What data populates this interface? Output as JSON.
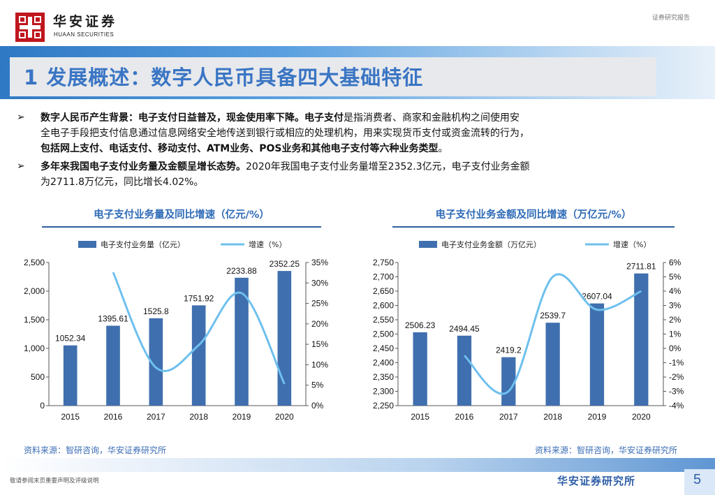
{
  "header": {
    "logo_cn": "华安证券",
    "logo_en": "HUAAN SECURITIES",
    "report_type": "证券研究报告"
  },
  "title": "1 发展概述：数字人民币具备四大基础特征",
  "bullets": [
    {
      "b1": "数字人民币产生背景：电子支付日益普及，现金使用率下降。",
      "b2": "电子支付",
      "n1": "是指消费者、商家和金融机构之间使用安",
      "n2": "全电子手段把支付信息通过信息网络安全地传送到银行或相应的处理机构，用来实现货币支付或资金流转的行为，",
      "b3": "包括网上支付、电话支付、移动支付、ATM业务、POS业务和其他电子支付等六种业务类型",
      "n3": "。"
    },
    {
      "b1": "多年来我国电子支付业务量及金额呈增长态势。",
      "n1": "2020年我国电子支付业务量增至2352.3亿元，电子支付业务金额",
      "n2": "为2711.8万亿元，同比增长4.02%。"
    }
  ],
  "charts": {
    "left_title": "电子支付业务量及同比增速（亿元/%）",
    "right_title": "电子支付业务金额及同比增速（万亿元/%）",
    "source_left": "资料来源：智研咨询，华安证券研究所",
    "source_right": "资料来源：智研咨询，华安证券研究所"
  },
  "chart_data": [
    {
      "type": "bar",
      "title": "电子支付业务量及同比增速（亿元/%）",
      "categories": [
        "2015",
        "2016",
        "2017",
        "2018",
        "2019",
        "2020"
      ],
      "series": [
        {
          "name": "电子支付业务量（亿元）",
          "type": "bar",
          "axis": "left",
          "values": [
            1052.34,
            1395.61,
            1525.8,
            1751.92,
            2233.88,
            2352.25
          ]
        },
        {
          "name": "增速（%）",
          "type": "line",
          "axis": "right",
          "values": [
            null,
            32.6,
            9.3,
            14.8,
            27.5,
            5.3
          ]
        }
      ],
      "data_labels": [
        "1052.34",
        "1395.61",
        "1525.8",
        "1751.92",
        "2233.88",
        "2352.25"
      ],
      "ylim": [
        0,
        2500
      ],
      "yticks": [
        "0",
        "500",
        "1,000",
        "1,500",
        "2,000",
        "2,500"
      ],
      "y2lim": [
        0,
        35
      ],
      "y2ticks": [
        "0%",
        "5%",
        "10%",
        "15%",
        "20%",
        "25%",
        "30%",
        "35%"
      ],
      "legend": "top",
      "colors": {
        "bar": "#3f6fae",
        "line": "#6ec0ee"
      },
      "grid": false
    },
    {
      "type": "bar",
      "title": "电子支付业务金额及同比增速（万亿元/%）",
      "categories": [
        "2015",
        "2016",
        "2017",
        "2018",
        "2019",
        "2020"
      ],
      "series": [
        {
          "name": "电子支付业务金额（万亿元）",
          "type": "bar",
          "axis": "left",
          "values": [
            2506.23,
            2494.45,
            2419.2,
            2539.7,
            2607.04,
            2711.81
          ]
        },
        {
          "name": "增速（%）",
          "type": "line",
          "axis": "right",
          "values": [
            null,
            -0.5,
            -3.0,
            5.0,
            2.7,
            4.0
          ]
        }
      ],
      "data_labels": [
        "2506.23",
        "2494.45",
        "2419.2",
        "2539.7",
        "2607.04",
        "2711.81"
      ],
      "ylim": [
        2250,
        2750
      ],
      "yticks": [
        "2,250",
        "2,300",
        "2,350",
        "2,400",
        "2,450",
        "2,500",
        "2,550",
        "2,600",
        "2,650",
        "2,700",
        "2,750"
      ],
      "y2lim": [
        -4,
        6
      ],
      "y2ticks": [
        "-4%",
        "-3%",
        "-2%",
        "-1%",
        "0%",
        "1%",
        "2%",
        "3%",
        "4%",
        "5%",
        "6%"
      ],
      "legend": "top",
      "colors": {
        "bar": "#3f6fae",
        "line": "#6ec0ee"
      },
      "grid": false
    }
  ],
  "footer": {
    "disclaimer": "敬请参阅末页重要声明及评级说明",
    "institute": "华安证券研究所",
    "page": "5"
  }
}
